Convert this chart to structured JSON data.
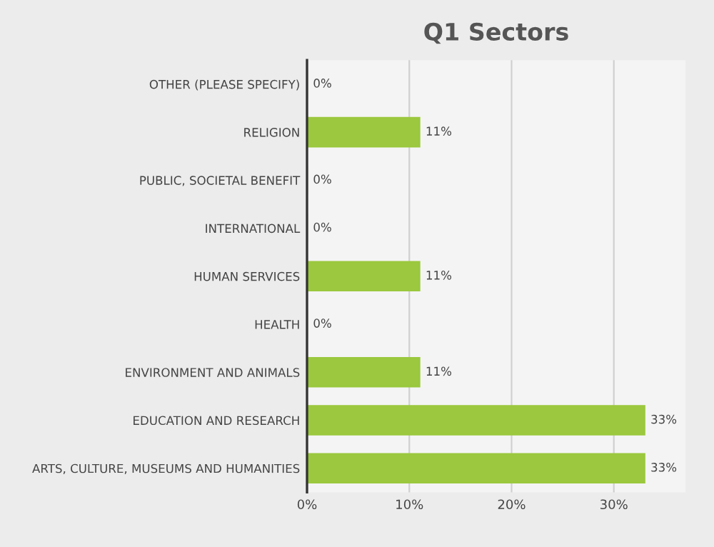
{
  "chart_data": {
    "type": "bar",
    "orientation": "horizontal",
    "title": "Q1 Sectors",
    "categories": [
      "OTHER (PLEASE SPECIFY)",
      "RELIGION",
      "PUBLIC, SOCIETAL BENEFIT",
      "INTERNATIONAL",
      "HUMAN SERVICES",
      "HEALTH",
      "ENVIRONMENT AND ANIMALS",
      "EDUCATION AND RESEARCH",
      "ARTS, CULTURE, MUSEUMS AND HUMANITIES"
    ],
    "values": [
      0,
      11,
      0,
      0,
      11,
      0,
      11,
      33,
      33
    ],
    "value_labels": [
      "0%",
      "11%",
      "0%",
      "0%",
      "11%",
      "0%",
      "11%",
      "33%",
      "33%"
    ],
    "color": "#9bc83e",
    "xlim": [
      0,
      37
    ],
    "xticks": [
      {
        "value": 0,
        "label": "0%"
      },
      {
        "value": 10,
        "label": "10%"
      },
      {
        "value": 20,
        "label": "20%"
      },
      {
        "value": 30,
        "label": "30%"
      }
    ],
    "grid": "x"
  }
}
